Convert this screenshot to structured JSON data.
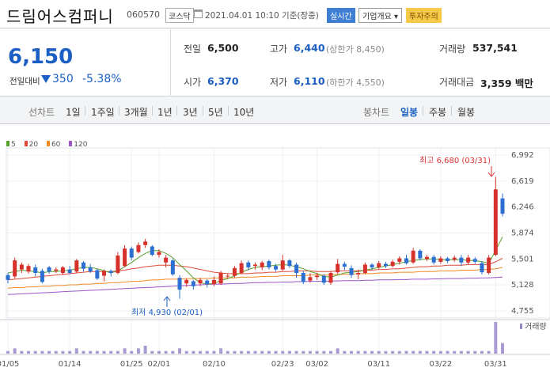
{
  "header": {
    "title": "드림어스컴퍼니",
    "code": "060570",
    "market": "코스닥",
    "datetime": "2021.04.01 10:10  기준(장중)",
    "realtime": "실시간",
    "company_info": "기업개요 ▾",
    "caution": "투자주의"
  },
  "summary": {
    "price": "6,150",
    "change_label": "전일대비",
    "change_amount": "350",
    "change_percent": "-5.38%",
    "prev_close_label": "전일",
    "prev_close": "6,500",
    "open_label": "시가",
    "open": "6,370",
    "high_label": "고가",
    "high": "6,440",
    "upper_limit": "(상한가 8,450)",
    "low_label": "저가",
    "low": "6,110",
    "lower_limit": "(하한가 4,550)",
    "volume_label": "거래량",
    "volume": "537,541",
    "amount_label": "거래대금",
    "amount": "3,359 백만"
  },
  "toolbar": {
    "line_chart": "선차트",
    "periods": [
      "1일",
      "1주일",
      "3개월",
      "1년",
      "3년",
      "5년",
      "10년"
    ],
    "candle_chart": "봉차트",
    "candles": [
      "일봉",
      "주봉",
      "월봉"
    ],
    "active_candle": "일봉"
  },
  "legend": [
    {
      "label": "5",
      "color": "#5aa02c"
    },
    {
      "label": "20",
      "color": "#e04a3a"
    },
    {
      "label": "60",
      "color": "#f08a24"
    },
    {
      "label": "120",
      "color": "#9a55c8"
    }
  ],
  "annotations": {
    "high": "최고 6,680 (03/31)",
    "low": "최저 4,930 (02/01)"
  },
  "volume_label": "거래량",
  "chart_data": {
    "type": "candlestick",
    "y_ticks": [
      "6,992",
      "6,619",
      "6,246",
      "5,874",
      "5,501",
      "5,128",
      "4,755"
    ],
    "ylim": [
      4755,
      6992
    ],
    "x_ticks": [
      "01/05",
      "01/14",
      "01/25",
      "02/01",
      "02/10",
      "02/23",
      "03/02",
      "03/11",
      "03/22",
      "03/31"
    ],
    "candles": [
      {
        "o": 5270,
        "c": 5200,
        "h": 5300,
        "l": 5150
      },
      {
        "o": 5250,
        "c": 5480,
        "h": 5520,
        "l": 5220
      },
      {
        "o": 5350,
        "c": 5420,
        "h": 5450,
        "l": 5300
      },
      {
        "o": 5320,
        "c": 5400,
        "h": 5430,
        "l": 5290
      },
      {
        "o": 5380,
        "c": 5300,
        "h": 5420,
        "l": 5250
      },
      {
        "o": 5330,
        "c": 5170,
        "h": 5360,
        "l": 5150
      },
      {
        "o": 5380,
        "c": 5320,
        "h": 5400,
        "l": 5290
      },
      {
        "o": 5330,
        "c": 5350,
        "h": 5380,
        "l": 5300
      },
      {
        "o": 5300,
        "c": 5380,
        "h": 5400,
        "l": 5270
      },
      {
        "o": 5350,
        "c": 5300,
        "h": 5400,
        "l": 5280
      },
      {
        "o": 5320,
        "c": 5480,
        "h": 5500,
        "l": 5300
      },
      {
        "o": 5450,
        "c": 5360,
        "h": 5470,
        "l": 5320
      },
      {
        "o": 5380,
        "c": 5320,
        "h": 5430,
        "l": 5300
      },
      {
        "o": 5340,
        "c": 5220,
        "h": 5360,
        "l": 5200
      },
      {
        "o": 5260,
        "c": 5330,
        "h": 5350,
        "l": 5180
      },
      {
        "o": 5330,
        "c": 5300,
        "h": 5350,
        "l": 5250
      },
      {
        "o": 5300,
        "c": 5550,
        "h": 5600,
        "l": 5280
      },
      {
        "o": 5400,
        "c": 5650,
        "h": 5700,
        "l": 5380
      },
      {
        "o": 5650,
        "c": 5520,
        "h": 5680,
        "l": 5480
      },
      {
        "o": 5600,
        "c": 5700,
        "h": 5740,
        "l": 5580
      },
      {
        "o": 5700,
        "c": 5750,
        "h": 5790,
        "l": 5660
      },
      {
        "o": 5680,
        "c": 5560,
        "h": 5700,
        "l": 5540
      },
      {
        "o": 5560,
        "c": 5600,
        "h": 5640,
        "l": 5520
      },
      {
        "o": 5450,
        "c": 5520,
        "h": 5560,
        "l": 5380
      },
      {
        "o": 5480,
        "c": 5280,
        "h": 5500,
        "l": 5260
      },
      {
        "o": 5230,
        "c": 5060,
        "h": 5270,
        "l": 4930
      },
      {
        "o": 5150,
        "c": 5200,
        "h": 5220,
        "l": 5100
      },
      {
        "o": 5180,
        "c": 5110,
        "h": 5200,
        "l": 5060
      },
      {
        "o": 5150,
        "c": 5200,
        "h": 5230,
        "l": 5110
      },
      {
        "o": 5190,
        "c": 5140,
        "h": 5210,
        "l": 5090
      },
      {
        "o": 5140,
        "c": 5200,
        "h": 5250,
        "l": 5110
      },
      {
        "o": 5150,
        "c": 5300,
        "h": 5330,
        "l": 5130
      },
      {
        "o": 5250,
        "c": 5260,
        "h": 5290,
        "l": 5220
      },
      {
        "o": 5260,
        "c": 5370,
        "h": 5400,
        "l": 5230
      },
      {
        "o": 5300,
        "c": 5440,
        "h": 5480,
        "l": 5280
      },
      {
        "o": 5450,
        "c": 5380,
        "h": 5480,
        "l": 5340
      },
      {
        "o": 5400,
        "c": 5420,
        "h": 5450,
        "l": 5350
      },
      {
        "o": 5380,
        "c": 5450,
        "h": 5470,
        "l": 5340
      },
      {
        "o": 5470,
        "c": 5380,
        "h": 5490,
        "l": 5350
      },
      {
        "o": 5400,
        "c": 5350,
        "h": 5430,
        "l": 5320
      },
      {
        "o": 5350,
        "c": 5480,
        "h": 5560,
        "l": 5330
      },
      {
        "o": 5480,
        "c": 5400,
        "h": 5500,
        "l": 5370
      },
      {
        "o": 5420,
        "c": 5300,
        "h": 5450,
        "l": 5230
      },
      {
        "o": 5300,
        "c": 5170,
        "h": 5330,
        "l": 5140
      },
      {
        "o": 5190,
        "c": 5240,
        "h": 5300,
        "l": 5160
      },
      {
        "o": 5240,
        "c": 5260,
        "h": 5300,
        "l": 5200
      },
      {
        "o": 5260,
        "c": 5160,
        "h": 5280,
        "l": 5130
      },
      {
        "o": 5160,
        "c": 5300,
        "h": 5330,
        "l": 5130
      },
      {
        "o": 5310,
        "c": 5430,
        "h": 5500,
        "l": 5290
      },
      {
        "o": 5430,
        "c": 5390,
        "h": 5460,
        "l": 5340
      },
      {
        "o": 5370,
        "c": 5270,
        "h": 5410,
        "l": 5230
      },
      {
        "o": 5280,
        "c": 5300,
        "h": 5350,
        "l": 5210
      },
      {
        "o": 5300,
        "c": 5420,
        "h": 5450,
        "l": 5280
      },
      {
        "o": 5420,
        "c": 5380,
        "h": 5440,
        "l": 5340
      },
      {
        "o": 5380,
        "c": 5440,
        "h": 5470,
        "l": 5360
      },
      {
        "o": 5430,
        "c": 5400,
        "h": 5460,
        "l": 5370
      },
      {
        "o": 5400,
        "c": 5460,
        "h": 5490,
        "l": 5380
      },
      {
        "o": 5460,
        "c": 5510,
        "h": 5540,
        "l": 5420
      },
      {
        "o": 5510,
        "c": 5440,
        "h": 5560,
        "l": 5420
      },
      {
        "o": 5450,
        "c": 5620,
        "h": 5660,
        "l": 5430
      },
      {
        "o": 5620,
        "c": 5510,
        "h": 5640,
        "l": 5480
      },
      {
        "o": 5500,
        "c": 5530,
        "h": 5560,
        "l": 5470
      },
      {
        "o": 5530,
        "c": 5450,
        "h": 5560,
        "l": 5420
      },
      {
        "o": 5460,
        "c": 5510,
        "h": 5540,
        "l": 5430
      },
      {
        "o": 5510,
        "c": 5470,
        "h": 5530,
        "l": 5440
      },
      {
        "o": 5490,
        "c": 5520,
        "h": 5550,
        "l": 5460
      },
      {
        "o": 5520,
        "c": 5450,
        "h": 5560,
        "l": 5400
      },
      {
        "o": 5450,
        "c": 5520,
        "h": 5560,
        "l": 5420
      },
      {
        "o": 5500,
        "c": 5460,
        "h": 5530,
        "l": 5430
      },
      {
        "o": 5440,
        "c": 5310,
        "h": 5470,
        "l": 5280
      },
      {
        "o": 5300,
        "c": 5520,
        "h": 5560,
        "l": 5280
      },
      {
        "o": 5560,
        "c": 6500,
        "h": 6680,
        "l": 5540
      },
      {
        "o": 6370,
        "c": 6150,
        "h": 6440,
        "l": 6110
      }
    ],
    "ma5": [
      5300,
      5320,
      5340,
      5330,
      5320,
      5300,
      5320,
      5320,
      5330,
      5340,
      5360,
      5380,
      5380,
      5360,
      5330,
      5300,
      5330,
      5390,
      5450,
      5520,
      5580,
      5620,
      5620,
      5580,
      5520,
      5420,
      5330,
      5230,
      5160,
      5140,
      5150,
      5190,
      5220,
      5260,
      5310,
      5350,
      5380,
      5390,
      5400,
      5410,
      5420,
      5410,
      5390,
      5360,
      5320,
      5290,
      5250,
      5240,
      5270,
      5300,
      5310,
      5320,
      5340,
      5360,
      5380,
      5400,
      5420,
      5440,
      5460,
      5480,
      5490,
      5500,
      5500,
      5490,
      5490,
      5490,
      5490,
      5480,
      5480,
      5460,
      5440,
      5620,
      5820
    ],
    "ma20": [
      5200,
      5210,
      5220,
      5230,
      5240,
      5250,
      5260,
      5270,
      5280,
      5290,
      5300,
      5310,
      5320,
      5320,
      5320,
      5320,
      5330,
      5340,
      5360,
      5370,
      5390,
      5400,
      5410,
      5410,
      5410,
      5400,
      5390,
      5370,
      5350,
      5330,
      5310,
      5300,
      5290,
      5290,
      5290,
      5290,
      5300,
      5300,
      5310,
      5310,
      5320,
      5320,
      5330,
      5330,
      5330,
      5320,
      5320,
      5320,
      5330,
      5330,
      5330,
      5330,
      5340,
      5340,
      5350,
      5350,
      5360,
      5360,
      5370,
      5380,
      5390,
      5390,
      5400,
      5400,
      5410,
      5410,
      5410,
      5420,
      5420,
      5420,
      5420,
      5460,
      5510
    ],
    "ma60": [
      5080,
      5090,
      5090,
      5100,
      5100,
      5110,
      5110,
      5120,
      5120,
      5130,
      5130,
      5140,
      5140,
      5150,
      5150,
      5160,
      5160,
      5170,
      5180,
      5180,
      5190,
      5200,
      5200,
      5210,
      5210,
      5210,
      5220,
      5220,
      5220,
      5220,
      5230,
      5230,
      5230,
      5230,
      5240,
      5240,
      5240,
      5250,
      5250,
      5250,
      5260,
      5260,
      5260,
      5260,
      5270,
      5270,
      5270,
      5270,
      5280,
      5280,
      5280,
      5290,
      5290,
      5290,
      5300,
      5300,
      5300,
      5310,
      5310,
      5310,
      5320,
      5320,
      5320,
      5330,
      5330,
      5330,
      5340,
      5340,
      5340,
      5350,
      5350,
      5360,
      5380
    ],
    "ma120": [
      4990,
      4995,
      5000,
      5005,
      5010,
      5015,
      5020,
      5025,
      5030,
      5035,
      5040,
      5045,
      5050,
      5055,
      5060,
      5065,
      5070,
      5075,
      5080,
      5085,
      5090,
      5095,
      5100,
      5105,
      5110,
      5115,
      5120,
      5125,
      5130,
      5135,
      5140,
      5140,
      5145,
      5150,
      5150,
      5155,
      5160,
      5160,
      5165,
      5165,
      5170,
      5170,
      5175,
      5175,
      5180,
      5180,
      5180,
      5185,
      5185,
      5190,
      5190,
      5190,
      5195,
      5195,
      5200,
      5200,
      5200,
      5205,
      5205,
      5210,
      5210,
      5210,
      5215,
      5215,
      5220,
      5220,
      5220,
      5225,
      5225,
      5230,
      5230,
      5235,
      5240
    ],
    "volumes": [
      1,
      2,
      1,
      1,
      1,
      1,
      1,
      1,
      1,
      1,
      2,
      1,
      1,
      1,
      1,
      1,
      1,
      2,
      1,
      2,
      3,
      1,
      1,
      1,
      1,
      2,
      1,
      1,
      1,
      1,
      1,
      2,
      1,
      1,
      1,
      1,
      1,
      1,
      1,
      1,
      1,
      1,
      1,
      1,
      1,
      1,
      1,
      1,
      2,
      1,
      1,
      1,
      1,
      1,
      1,
      1,
      1,
      1,
      1,
      1,
      1,
      1,
      1,
      1,
      1,
      1,
      1,
      1,
      1,
      1,
      1,
      12,
      4
    ]
  }
}
